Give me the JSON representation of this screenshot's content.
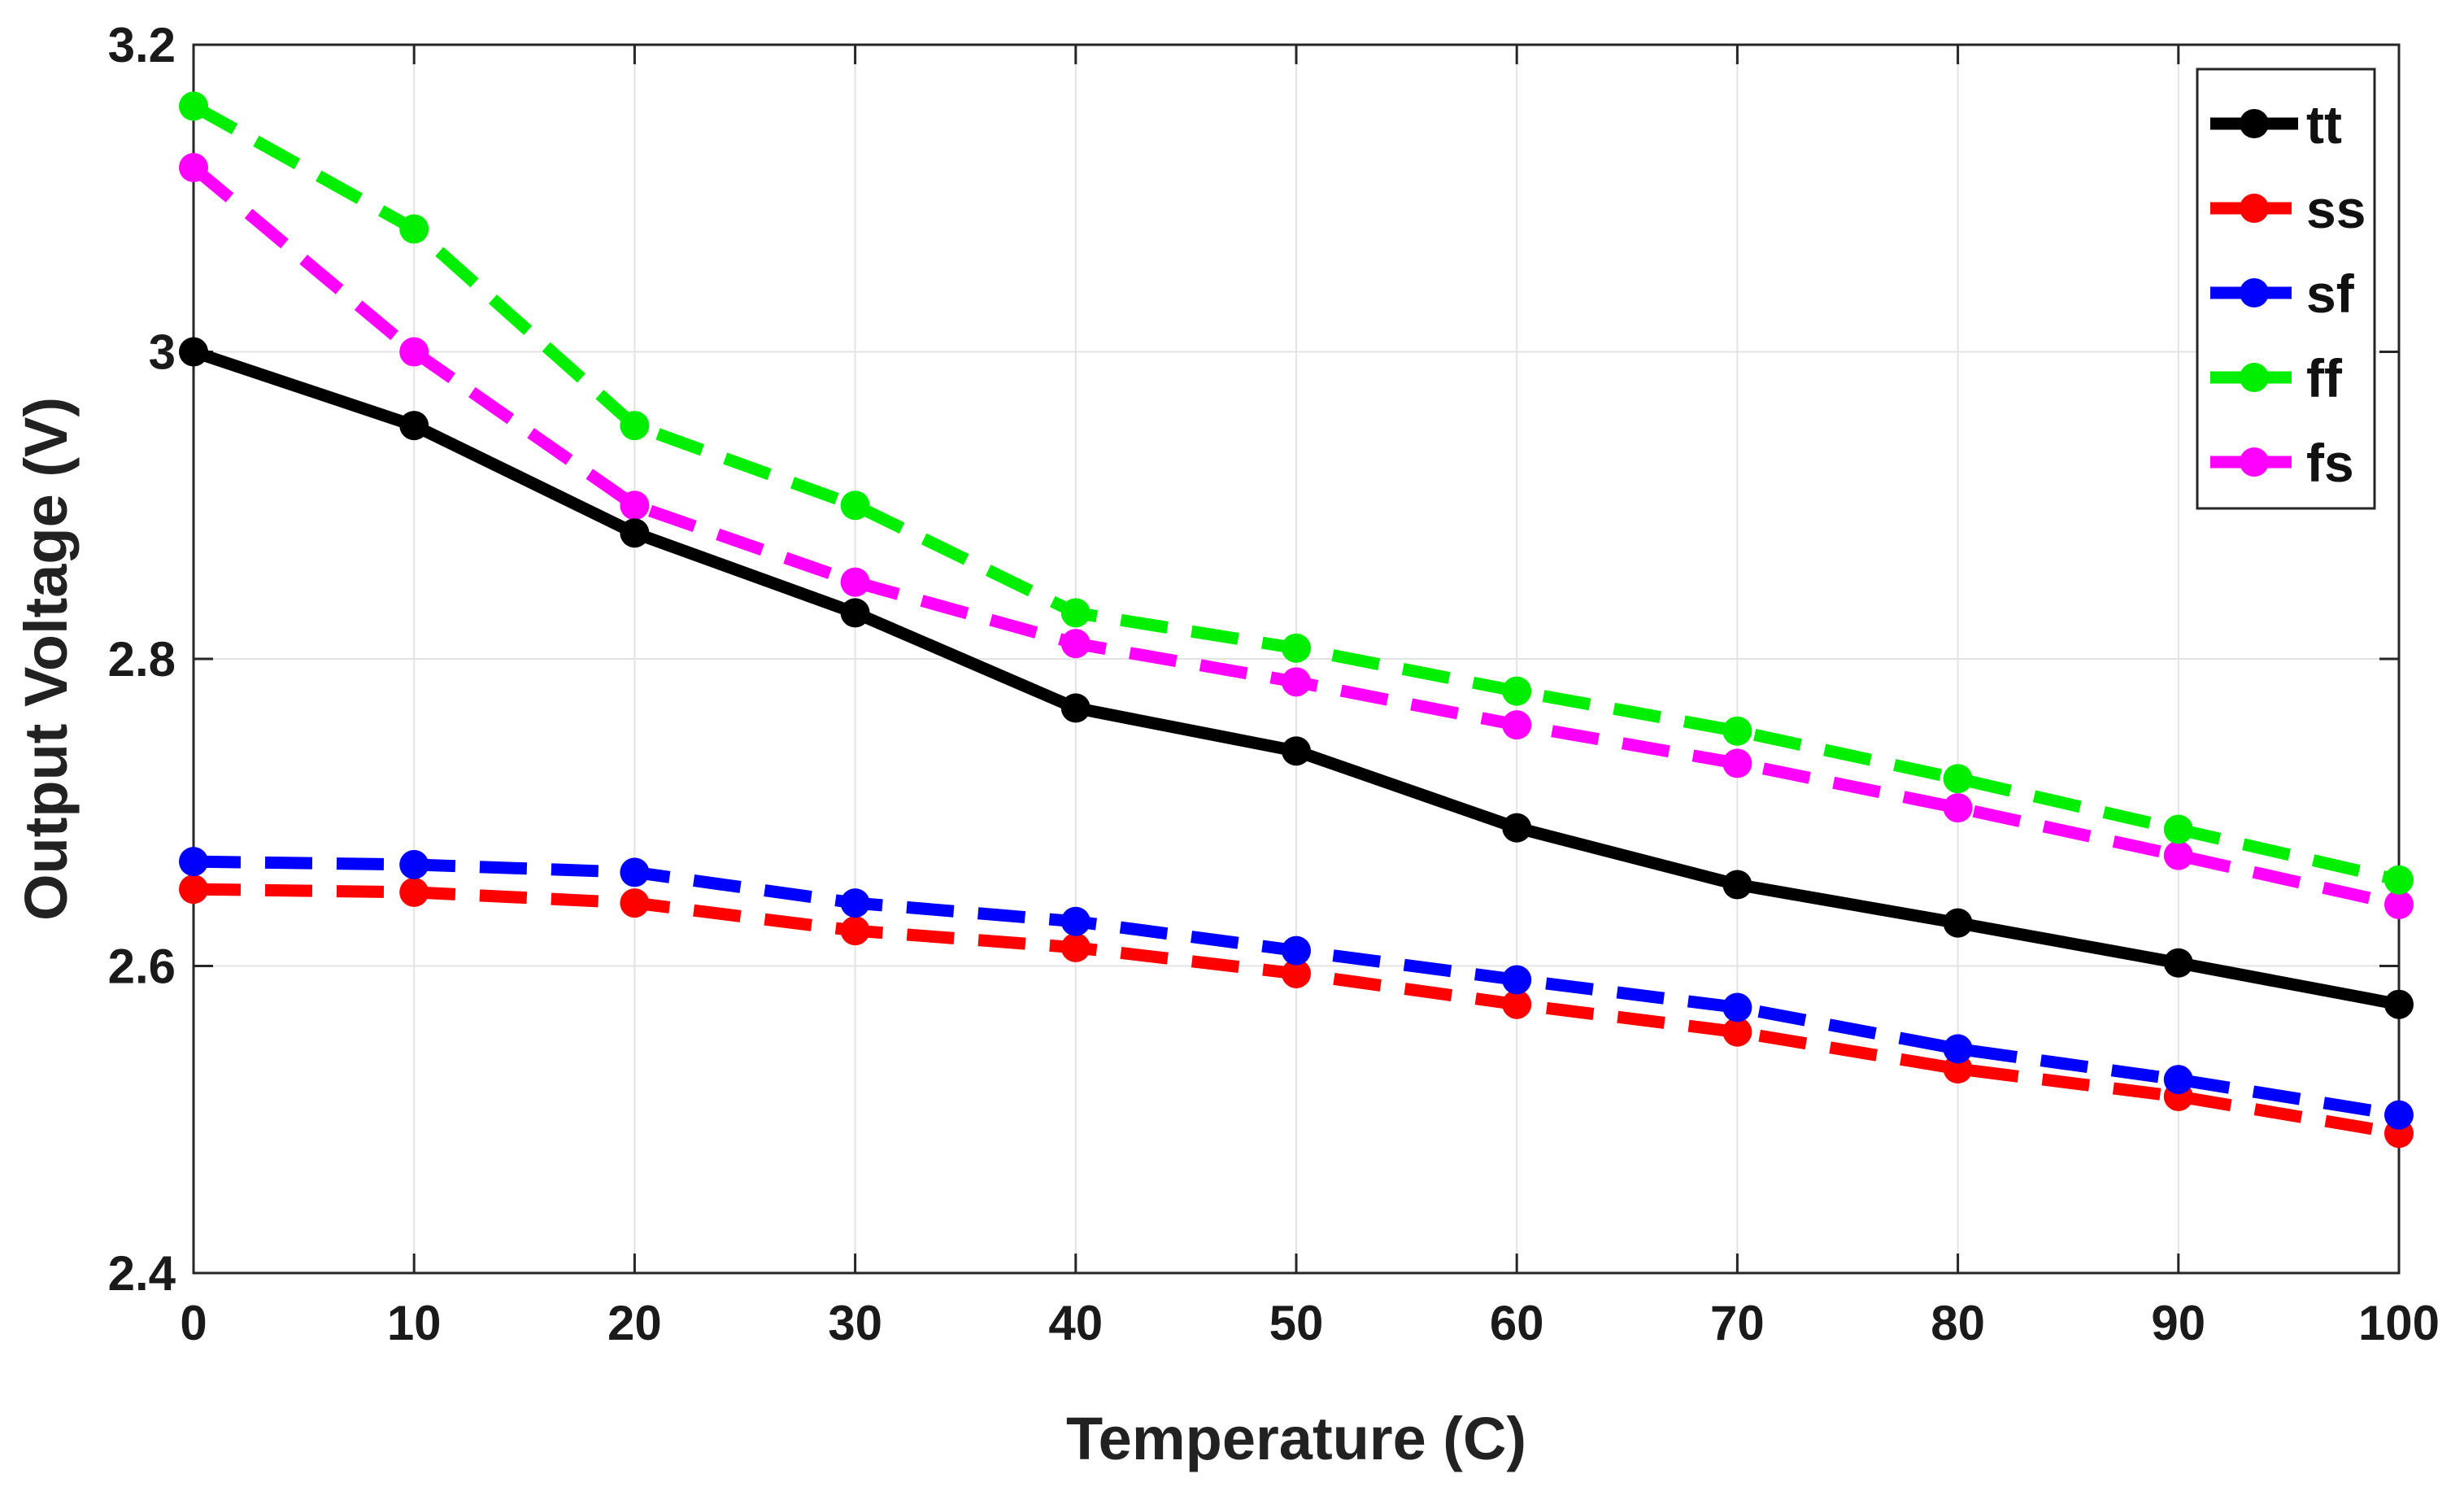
{
  "chart_data": {
    "type": "line",
    "title": "",
    "xlabel": "Temperature (C)",
    "ylabel": "Output Voltage (V)",
    "xlim": [
      0,
      100
    ],
    "ylim": [
      2.4,
      3.2
    ],
    "grid": true,
    "legend_position": "top-right",
    "x": [
      0,
      10,
      20,
      30,
      40,
      50,
      60,
      70,
      80,
      90,
      100
    ],
    "xticks": [
      0,
      10,
      20,
      30,
      40,
      50,
      60,
      70,
      80,
      90,
      100
    ],
    "yticks": [
      2.4,
      2.6,
      2.8,
      3.0,
      3.2
    ],
    "ytick_labels": [
      "2.4",
      "2.6",
      "2.8",
      "3",
      "3.2"
    ],
    "series": [
      {
        "name": "tt",
        "color": "#000000",
        "style": "solid",
        "values": [
          3.0,
          2.952,
          2.882,
          2.83,
          2.768,
          2.74,
          2.69,
          2.653,
          2.628,
          2.602,
          2.575
        ]
      },
      {
        "name": "ss",
        "color": "#ff0000",
        "style": "dashed",
        "values": [
          2.65,
          2.648,
          2.641,
          2.623,
          2.612,
          2.595,
          2.575,
          2.557,
          2.533,
          2.515,
          2.491
        ]
      },
      {
        "name": "sf",
        "color": "#0000ff",
        "style": "dashed",
        "values": [
          2.668,
          2.666,
          2.661,
          2.641,
          2.629,
          2.61,
          2.591,
          2.573,
          2.546,
          2.526,
          2.503
        ]
      },
      {
        "name": "ff",
        "color": "#00ee00",
        "style": "dashed",
        "values": [
          3.16,
          3.08,
          2.952,
          2.9,
          2.83,
          2.807,
          2.779,
          2.753,
          2.722,
          2.689,
          2.656
        ]
      },
      {
        "name": "fs",
        "color": "#ff00ff",
        "style": "dashed",
        "values": [
          3.12,
          3.0,
          2.9,
          2.85,
          2.81,
          2.785,
          2.757,
          2.732,
          2.703,
          2.672,
          2.64
        ]
      }
    ]
  }
}
